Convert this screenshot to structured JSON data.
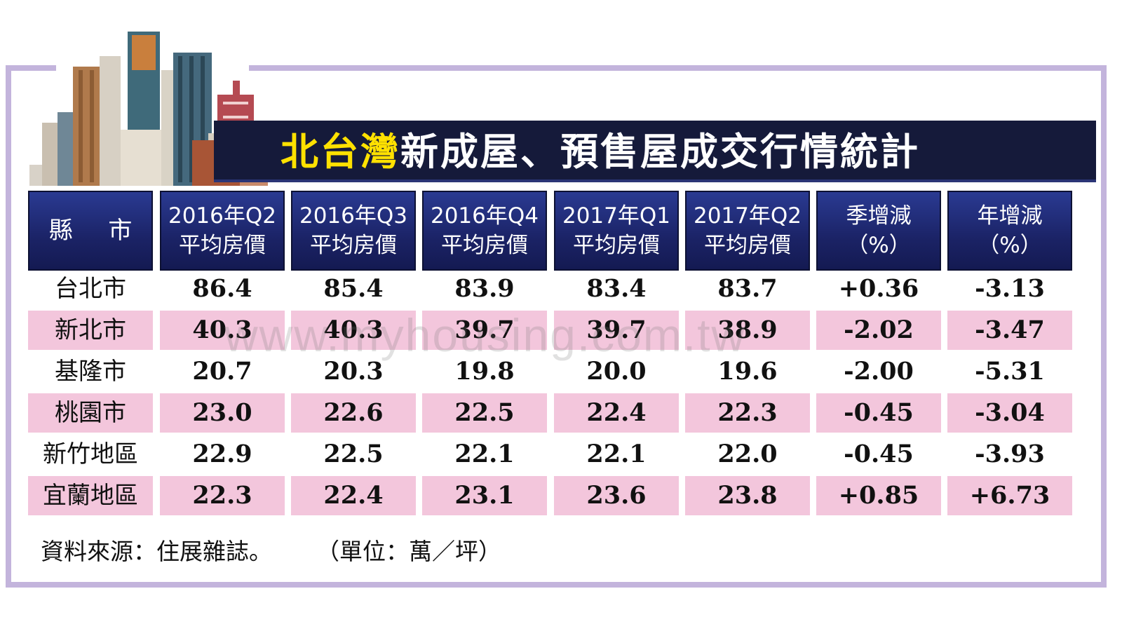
{
  "title": {
    "highlight": "北台灣",
    "rest": "新成屋、預售屋成交行情統計"
  },
  "headers": [
    {
      "l1": "縣 市",
      "l2": ""
    },
    {
      "l1": "2016年Q2",
      "l2": "平均房價"
    },
    {
      "l1": "2016年Q3",
      "l2": "平均房價"
    },
    {
      "l1": "2016年Q4",
      "l2": "平均房價"
    },
    {
      "l1": "2017年Q1",
      "l2": "平均房價"
    },
    {
      "l1": "2017年Q2",
      "l2": "平均房價"
    },
    {
      "l1": "季增減",
      "l2": "（%）"
    },
    {
      "l1": "年增減",
      "l2": "（%）"
    }
  ],
  "chart_data": {
    "type": "table",
    "columns": [
      "縣 市",
      "2016年Q2 平均房價",
      "2016年Q3 平均房價",
      "2016年Q4 平均房價",
      "2017年Q1 平均房價",
      "2017年Q2 平均房價",
      "季增減（%）",
      "年增減（%）"
    ],
    "rows": [
      [
        "台北市",
        "86.4",
        "85.4",
        "83.9",
        "83.4",
        "83.7",
        "+0.36",
        "-3.13"
      ],
      [
        "新北市",
        "40.3",
        "40.3",
        "39.7",
        "39.7",
        "38.9",
        "-2.02",
        "-3.47"
      ],
      [
        "基隆市",
        "20.7",
        "20.3",
        "19.8",
        "20.0",
        "19.6",
        "-2.00",
        "-5.31"
      ],
      [
        "桃園市",
        "23.0",
        "22.6",
        "22.5",
        "22.4",
        "22.3",
        "-0.45",
        "-3.04"
      ],
      [
        "新竹地區",
        "22.9",
        "22.5",
        "22.1",
        "22.1",
        "22.0",
        "-0.45",
        "-3.93"
      ],
      [
        "宜蘭地區",
        "22.3",
        "22.4",
        "23.1",
        "23.6",
        "23.8",
        "+0.85",
        "+6.73"
      ]
    ]
  },
  "footer": {
    "source": "資料來源：住展雜誌。",
    "unit": "（單位：萬／坪）"
  },
  "watermark": "www.myhousing.com.tw",
  "colors": {
    "header_bg": "#1b2366",
    "title_bg": "#151a3a",
    "title_highlight": "#ffe100",
    "row_highlight": "#f3c6dc",
    "frame": "#c3b4dc"
  }
}
